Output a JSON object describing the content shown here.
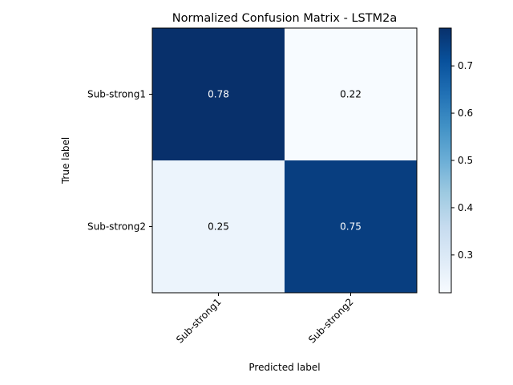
{
  "chart_data": {
    "type": "heatmap",
    "title": "Normalized Confusion Matrix - LSTM2a",
    "xlabel": "Predicted label",
    "ylabel": "True label",
    "x_categories": [
      "Sub-strong1",
      "Sub-strong2"
    ],
    "y_categories": [
      "Sub-strong1",
      "Sub-strong2"
    ],
    "values": [
      [
        0.78,
        0.22
      ],
      [
        0.25,
        0.75
      ]
    ],
    "value_labels": [
      [
        "0.78",
        "0.22"
      ],
      [
        "0.25",
        "0.75"
      ]
    ],
    "colormap": "Blues",
    "colorbar": {
      "range": [
        0.22,
        0.78
      ],
      "ticks": [
        0.3,
        0.4,
        0.5,
        0.6,
        0.7
      ],
      "tick_labels": [
        "0.3",
        "0.4",
        "0.5",
        "0.6",
        "0.7"
      ]
    },
    "grid": false,
    "legend": "none"
  }
}
